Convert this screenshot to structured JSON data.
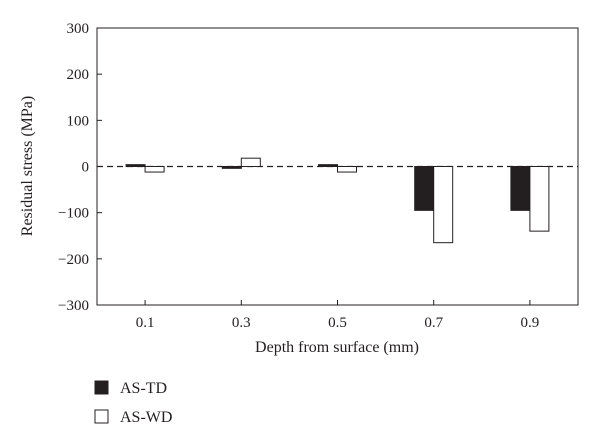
{
  "chart_data": {
    "type": "bar",
    "xlabel": "Depth from surface (mm)",
    "ylabel": "Residual stress (MPa)",
    "categories": [
      "0.1",
      "0.3",
      "0.5",
      "0.7",
      "0.9"
    ],
    "series": [
      {
        "name": "AS-TD",
        "color": "#231f20",
        "values": [
          4,
          -4,
          4,
          -95,
          -95
        ]
      },
      {
        "name": "AS-WD",
        "color": "#ffffff",
        "values": [
          -12,
          18,
          -12,
          -165,
          -140
        ]
      }
    ],
    "ylim": [
      -300,
      300
    ],
    "yticks": [
      300,
      200,
      100,
      0,
      -100,
      -200,
      -300
    ],
    "ytick_labels": [
      "300",
      "200",
      "100",
      "0",
      "−100",
      "−200",
      "−300"
    ],
    "zero_line": "dashed",
    "grid": false,
    "legend_position": "bottom-left"
  }
}
